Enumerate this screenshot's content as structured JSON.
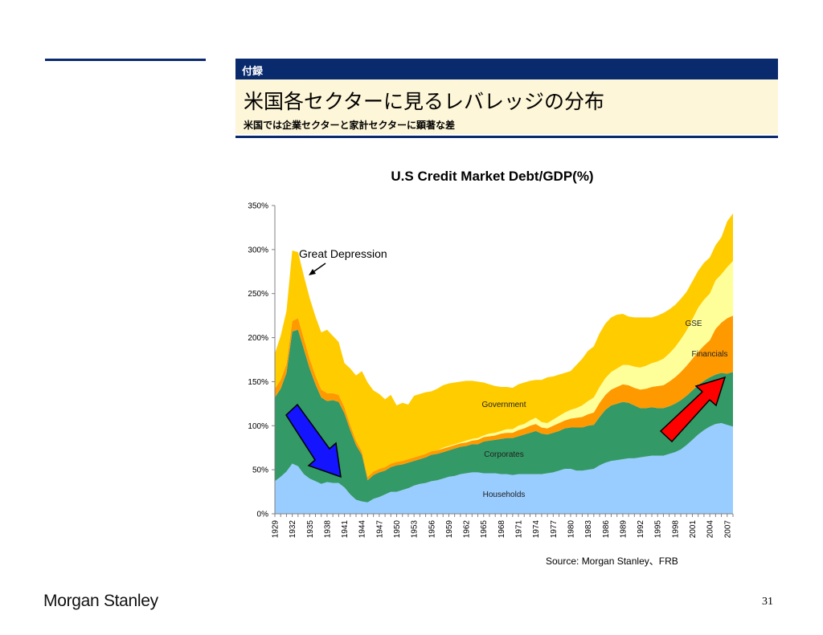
{
  "header": {
    "tag": "付録",
    "title": "米国各セクターに見るレバレッジの分布",
    "subtitle": "米国では企業セクターと家計セクターに顕著な差"
  },
  "source": "Source: Morgan Stanley、FRB",
  "logo": "Morgan Stanley",
  "page_number": "31",
  "chart_data": {
    "type": "area",
    "stacked": true,
    "title": "U.S Credit Market Debt/GDP(%)",
    "xlabel": "",
    "ylabel": "",
    "ylim": [
      0,
      350
    ],
    "yticks": [
      "0%",
      "50%",
      "100%",
      "150%",
      "200%",
      "250%",
      "300%",
      "350%"
    ],
    "xtick_labels": [
      "1929",
      "1932",
      "1935",
      "1938",
      "1941",
      "1944",
      "1947",
      "1950",
      "1953",
      "1956",
      "1959",
      "1962",
      "1965",
      "1968",
      "1971",
      "1974",
      "1977",
      "1980",
      "1983",
      "1986",
      "1989",
      "1992",
      "1995",
      "1998",
      "2001",
      "2004",
      "2007"
    ],
    "grid": false,
    "x": [
      1929,
      1930,
      1931,
      1932,
      1933,
      1934,
      1935,
      1936,
      1937,
      1938,
      1939,
      1940,
      1941,
      1942,
      1943,
      1944,
      1945,
      1946,
      1947,
      1948,
      1949,
      1950,
      1951,
      1952,
      1953,
      1954,
      1955,
      1956,
      1957,
      1958,
      1959,
      1960,
      1961,
      1962,
      1963,
      1964,
      1965,
      1966,
      1967,
      1968,
      1969,
      1970,
      1971,
      1972,
      1973,
      1974,
      1975,
      1976,
      1977,
      1978,
      1979,
      1980,
      1981,
      1982,
      1983,
      1984,
      1985,
      1986,
      1987,
      1988,
      1989,
      1990,
      1991,
      1992,
      1993,
      1994,
      1995,
      1996,
      1997,
      1998,
      1999,
      2000,
      2001,
      2002,
      2003,
      2004,
      2005,
      2006,
      2007,
      2008
    ],
    "series": [
      {
        "name": "Households",
        "color": "#99ccff",
        "values": [
          37,
          42,
          48,
          57,
          54,
          45,
          40,
          37,
          34,
          36,
          35,
          35,
          30,
          22,
          16,
          14,
          13,
          17,
          19,
          22,
          25,
          25,
          27,
          29,
          32,
          34,
          35,
          37,
          38,
          40,
          42,
          43,
          45,
          46,
          47,
          47,
          46,
          46,
          46,
          45,
          45,
          44,
          45,
          45,
          45,
          45,
          45,
          46,
          47,
          49,
          51,
          51,
          49,
          49,
          50,
          51,
          55,
          58,
          60,
          61,
          62,
          63,
          63,
          64,
          65,
          66,
          66,
          66,
          68,
          70,
          73,
          78,
          84,
          90,
          95,
          99,
          102,
          103,
          101,
          99
        ]
      },
      {
        "name": "Corporates",
        "color": "#339966",
        "values": [
          95,
          100,
          112,
          150,
          155,
          142,
          125,
          110,
          98,
          92,
          94,
          92,
          84,
          73,
          62,
          53,
          25,
          27,
          28,
          27,
          28,
          30,
          29,
          29,
          28,
          28,
          29,
          30,
          30,
          30,
          30,
          31,
          31,
          31,
          32,
          32,
          36,
          37,
          38,
          40,
          41,
          42,
          43,
          45,
          47,
          49,
          46,
          44,
          45,
          45,
          46,
          47,
          49,
          49,
          50,
          50,
          55,
          60,
          63,
          64,
          65,
          63,
          60,
          56,
          55,
          55,
          54,
          54,
          54,
          55,
          56,
          56,
          56,
          56,
          56,
          56,
          56,
          57,
          58,
          62
        ]
      },
      {
        "name": "Financials",
        "color": "#ff9900",
        "values": [
          10,
          10,
          10,
          12,
          13,
          12,
          11,
          10,
          9,
          9,
          8,
          8,
          7,
          6,
          5,
          4,
          4,
          4,
          4,
          4,
          4,
          4,
          4,
          4,
          4,
          4,
          4,
          4,
          4,
          4,
          4,
          4,
          4,
          4,
          4,
          5,
          5,
          5,
          5,
          6,
          6,
          6,
          7,
          7,
          8,
          8,
          7,
          7,
          8,
          9,
          9,
          10,
          11,
          12,
          13,
          14,
          16,
          17,
          18,
          19,
          20,
          20,
          20,
          21,
          22,
          23,
          25,
          26,
          28,
          30,
          32,
          34,
          36,
          38,
          40,
          42,
          52,
          57,
          63,
          64
        ]
      },
      {
        "name": "GSE",
        "color": "#ffff99",
        "values": [
          0,
          0,
          0,
          0,
          0,
          0,
          0,
          0,
          0,
          0,
          0,
          0,
          0,
          0,
          0,
          0,
          0,
          0,
          0,
          0,
          0,
          0,
          0,
          0,
          0,
          0,
          0,
          0,
          0,
          1,
          1,
          1,
          1,
          2,
          2,
          2,
          2,
          3,
          3,
          3,
          4,
          4,
          5,
          5,
          6,
          7,
          6,
          6,
          7,
          8,
          9,
          10,
          11,
          13,
          15,
          17,
          18,
          19,
          20,
          21,
          22,
          23,
          24,
          25,
          26,
          27,
          28,
          30,
          32,
          34,
          37,
          40,
          45,
          50,
          52,
          53,
          55,
          55,
          58,
          62
        ]
      },
      {
        "name": "Government",
        "color": "#ffcc00",
        "values": [
          40,
          50,
          60,
          80,
          75,
          71,
          69,
          67,
          65,
          72,
          65,
          60,
          50,
          64,
          74,
          91,
          107,
          92,
          85,
          77,
          78,
          64,
          66,
          62,
          70,
          70,
          70,
          68,
          70,
          71,
          71,
          70,
          69,
          68,
          66,
          64,
          60,
          56,
          53,
          50,
          48,
          47,
          47,
          47,
          45,
          43,
          48,
          52,
          49,
          47,
          45,
          44,
          49,
          53,
          57,
          58,
          61,
          62,
          62,
          61,
          58,
          55,
          56,
          57,
          55,
          52,
          52,
          52,
          50,
          48,
          46,
          44,
          43,
          42,
          42,
          41,
          40,
          42,
          52,
          54
        ]
      }
    ],
    "annotations": [
      {
        "text": "Great Depression"
      },
      {
        "text": "Households"
      },
      {
        "text": "Corporates"
      },
      {
        "text": "Government"
      },
      {
        "text": "Financials"
      },
      {
        "text": "GSE"
      }
    ]
  }
}
